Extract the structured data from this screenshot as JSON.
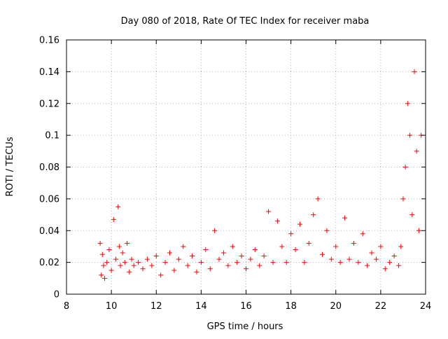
{
  "chart_data": {
    "type": "scatter",
    "title": "Day 080 of 2018, Rate Of TEC Index for receiver maba",
    "xlabel": "GPS time / hours",
    "ylabel": "ROTI / TECUs",
    "xlim": [
      8,
      24
    ],
    "ylim": [
      0,
      0.16
    ],
    "xticks": [
      8,
      10,
      12,
      14,
      16,
      18,
      20,
      22,
      24
    ],
    "xtick_labels": [
      "8",
      "10",
      "12",
      "14",
      "16",
      "18",
      "20",
      "22",
      "24"
    ],
    "yticks": [
      0,
      0.02,
      0.04,
      0.06,
      0.08,
      0.1,
      0.12,
      0.14,
      0.16
    ],
    "ytick_labels": [
      "0",
      "0.02",
      "0.04",
      "0.06",
      "0.08",
      "0.1",
      "0.12",
      "0.14",
      "0.16"
    ],
    "grid": true,
    "marker": "+",
    "series_color": "#ff0000",
    "series": [
      {
        "name": "ROTI",
        "x": [
          9.5,
          9.55,
          9.6,
          9.65,
          9.7,
          9.8,
          9.9,
          10.0,
          10.1,
          10.2,
          10.3,
          10.35,
          10.4,
          10.5,
          10.6,
          10.7,
          10.8,
          10.9,
          11.0,
          11.2,
          11.4,
          11.6,
          11.8,
          12.0,
          12.2,
          12.4,
          12.6,
          12.8,
          13.0,
          13.2,
          13.4,
          13.6,
          13.8,
          14.0,
          14.2,
          14.4,
          14.6,
          14.8,
          15.0,
          15.2,
          15.4,
          15.6,
          15.8,
          16.0,
          16.2,
          16.4,
          16.6,
          16.8,
          17.0,
          17.2,
          17.4,
          17.6,
          17.8,
          18.0,
          18.2,
          18.4,
          18.6,
          18.8,
          19.0,
          19.2,
          19.4,
          19.6,
          19.8,
          20.0,
          20.2,
          20.4,
          20.6,
          20.8,
          21.0,
          21.2,
          21.4,
          21.6,
          21.8,
          22.0,
          22.2,
          22.4,
          22.6,
          22.8,
          22.9,
          23.0,
          23.1,
          23.2,
          23.3,
          23.4,
          23.5,
          23.6,
          23.7,
          23.8
        ],
        "y": [
          0.032,
          0.012,
          0.025,
          0.018,
          0.01,
          0.02,
          0.028,
          0.015,
          0.047,
          0.022,
          0.055,
          0.03,
          0.018,
          0.026,
          0.02,
          0.032,
          0.014,
          0.022,
          0.018,
          0.02,
          0.016,
          0.022,
          0.018,
          0.024,
          0.012,
          0.02,
          0.026,
          0.015,
          0.022,
          0.03,
          0.018,
          0.024,
          0.014,
          0.02,
          0.028,
          0.016,
          0.04,
          0.022,
          0.026,
          0.018,
          0.03,
          0.02,
          0.024,
          0.016,
          0.022,
          0.028,
          0.018,
          0.024,
          0.052,
          0.02,
          0.046,
          0.03,
          0.02,
          0.038,
          0.028,
          0.044,
          0.02,
          0.032,
          0.05,
          0.06,
          0.025,
          0.04,
          0.022,
          0.03,
          0.02,
          0.048,
          0.022,
          0.032,
          0.02,
          0.038,
          0.018,
          0.026,
          0.022,
          0.03,
          0.016,
          0.02,
          0.024,
          0.018,
          0.03,
          0.06,
          0.08,
          0.12,
          0.1,
          0.05,
          0.14,
          0.09,
          0.04,
          0.1
        ]
      }
    ]
  }
}
